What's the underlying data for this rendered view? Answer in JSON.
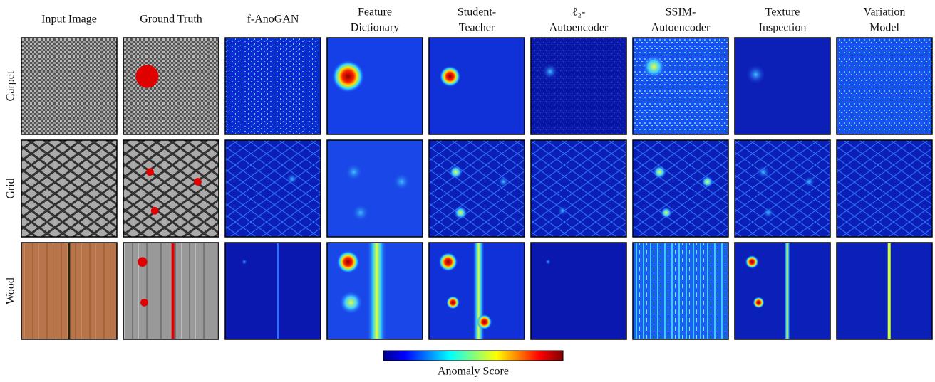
{
  "columns": [
    [
      "Input Image"
    ],
    [
      "Ground Truth"
    ],
    [
      "f-AnoGAN"
    ],
    [
      "Feature",
      "Dictionary"
    ],
    [
      "Student-",
      "Teacher"
    ],
    [
      "ℓ₂-",
      "Autoencoder"
    ],
    [
      "SSIM-",
      "Autoencoder"
    ],
    [
      "Texture",
      "Inspection"
    ],
    [
      "Variation",
      "Model"
    ]
  ],
  "rows": [
    "Carpet",
    "Grid",
    "Wood"
  ],
  "colorbar": {
    "label": "Anomaly Score"
  }
}
